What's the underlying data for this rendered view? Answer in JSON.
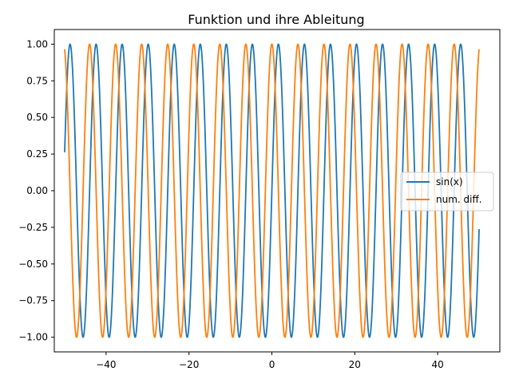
{
  "chart_data": {
    "type": "line",
    "title": "Funktion und ihre Ableitung",
    "xlabel": "",
    "ylabel": "",
    "xlim": [
      -52.5,
      55.0
    ],
    "ylim": [
      -1.1,
      1.1
    ],
    "xticks": [
      -40,
      -20,
      0,
      20,
      40
    ],
    "xtick_labels": [
      "−40",
      "−20",
      "0",
      "20",
      "40"
    ],
    "yticks": [
      -1.0,
      -0.75,
      -0.5,
      -0.25,
      0.0,
      0.25,
      0.5,
      0.75,
      1.0
    ],
    "ytick_labels": [
      "−1.00",
      "−0.75",
      "−0.50",
      "−0.25",
      "0.00",
      "0.25",
      "0.50",
      "0.75",
      "1.00"
    ],
    "grid": false,
    "legend_position": "center-right",
    "x_range": [
      -50,
      50
    ],
    "series": [
      {
        "name": "sin(x)",
        "function": "sin(x)",
        "color": "#1f77b4"
      },
      {
        "name": "num. diff.",
        "function": "cos(x)",
        "color": "#ff7f0e"
      }
    ]
  }
}
